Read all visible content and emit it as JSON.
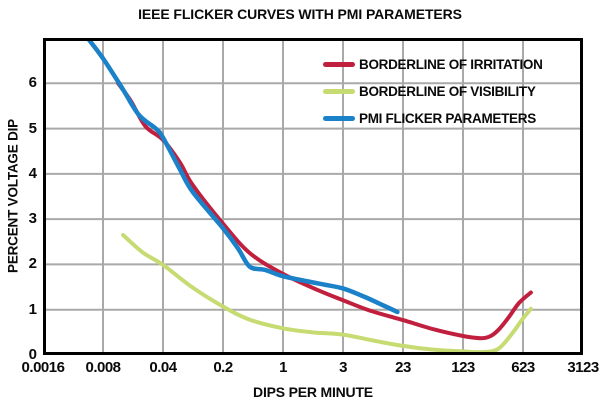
{
  "chart_data": {
    "type": "line",
    "title": "IEEE FLICKER CURVES WITH PMI PARAMETERS",
    "xlabel": "DIPS PER MINUTE",
    "ylabel": "PERCENT VOLTAGE DIP",
    "x_scale": "log-between-ticks",
    "x_ticks": [
      0.0016,
      0.008,
      0.04,
      0.2,
      1,
      3,
      23,
      123,
      623,
      3123
    ],
    "x_tick_labels": [
      "0.0016",
      "0.008",
      "0.04",
      "0.2",
      "1",
      "3",
      "23",
      "123",
      "623",
      "3123"
    ],
    "y_ticks": [
      0,
      1,
      2,
      3,
      4,
      5,
      6
    ],
    "ylim": [
      0,
      7
    ],
    "grid": true,
    "legend_position": "inside-top-right",
    "colors": {
      "background": "#ffffff",
      "grid": "#a9a9a9",
      "axis": "#000000",
      "text": "#0a0a0a"
    },
    "series": [
      {
        "name": "BORDERLINE OF IRRITATION",
        "color": "#c01f3e",
        "stroke_width": 4,
        "points": [
          [
            0.012,
            6.0
          ],
          [
            0.017,
            5.6
          ],
          [
            0.025,
            5.05
          ],
          [
            0.04,
            4.75
          ],
          [
            0.063,
            4.25
          ],
          [
            0.089,
            3.75
          ],
          [
            0.2,
            2.9
          ],
          [
            0.41,
            2.25
          ],
          [
            1,
            1.79
          ],
          [
            1.9,
            1.43
          ],
          [
            3,
            1.21
          ],
          [
            7.5,
            0.98
          ],
          [
            23,
            0.77
          ],
          [
            56,
            0.56
          ],
          [
            123,
            0.42
          ],
          [
            200,
            0.37
          ],
          [
            260,
            0.42
          ],
          [
            330,
            0.58
          ],
          [
            430,
            0.85
          ],
          [
            560,
            1.15
          ],
          [
            770,
            1.38
          ]
        ]
      },
      {
        "name": "BORDERLINE OF VISIBILITY",
        "color": "#c6db72",
        "stroke_width": 4,
        "points": [
          [
            0.0137,
            2.65
          ],
          [
            0.023,
            2.27
          ],
          [
            0.04,
            1.99
          ],
          [
            0.087,
            1.5
          ],
          [
            0.2,
            1.07
          ],
          [
            0.41,
            0.78
          ],
          [
            1,
            0.59
          ],
          [
            1.73,
            0.5
          ],
          [
            3,
            0.45
          ],
          [
            8.3,
            0.32
          ],
          [
            23,
            0.2
          ],
          [
            53,
            0.12
          ],
          [
            123,
            0.08
          ],
          [
            194,
            0.065
          ],
          [
            316,
            0.13
          ],
          [
            475,
            0.5
          ],
          [
            606,
            0.78
          ],
          [
            770,
            1.02
          ]
        ]
      },
      {
        "name": "PMI FLICKER PARAMETERS",
        "color": "#1b81c8",
        "stroke_width": 4.5,
        "points": [
          [
            0.0053,
            7.0
          ],
          [
            0.008,
            6.55
          ],
          [
            0.0133,
            5.9
          ],
          [
            0.021,
            5.3
          ],
          [
            0.033,
            5.0
          ],
          [
            0.04,
            4.8
          ],
          [
            0.063,
            4.1
          ],
          [
            0.089,
            3.6
          ],
          [
            0.2,
            2.8
          ],
          [
            0.3,
            2.35
          ],
          [
            0.41,
            1.95
          ],
          [
            0.62,
            1.88
          ],
          [
            1,
            1.74
          ],
          [
            1.9,
            1.58
          ],
          [
            3,
            1.47
          ],
          [
            6.3,
            1.28
          ],
          [
            11.6,
            1.1
          ],
          [
            19,
            0.95
          ]
        ]
      }
    ]
  }
}
